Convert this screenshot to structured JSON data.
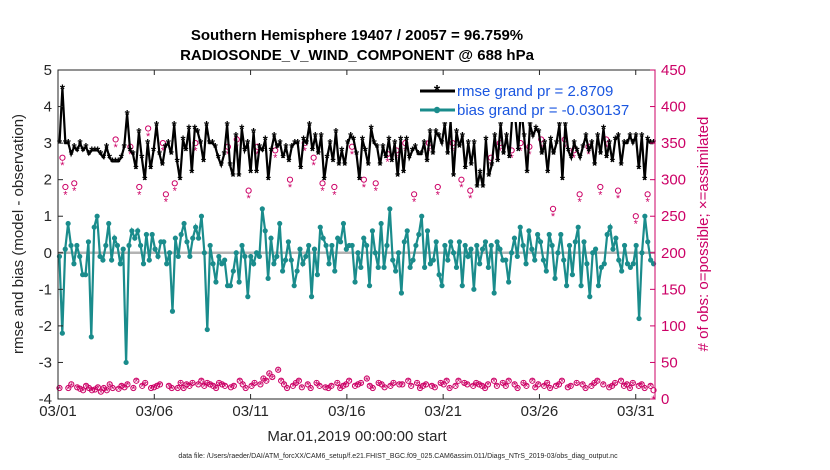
{
  "chart_data": {
    "type": "line",
    "title_line1": "Southern Hemisphere 19407 / 20057 = 96.759%",
    "title_line2": "RADIOSONDE_V_WIND_COMPONENT @ 688 hPa",
    "xlabel": "Mar.01,2019 00:00:00 start",
    "ylabel_left": "rmse and bias (model - observation)",
    "ylabel_right": "# of obs: o=possible; ×=assimilated",
    "footnote": "data file: /Users/raeder/DAI/ATM_forcXX/CAM6_setup/f.e21.FHIST_BGC.f09_025.CAM6assim.011/Diags_NTrS_2019-03/obs_diag_output.nc",
    "x_ticks": [
      {
        "value": 1,
        "label": "03/01"
      },
      {
        "value": 6,
        "label": "03/06"
      },
      {
        "value": 11,
        "label": "03/11"
      },
      {
        "value": 16,
        "label": "03/16"
      },
      {
        "value": 21,
        "label": "03/21"
      },
      {
        "value": 26,
        "label": "03/26"
      },
      {
        "value": 31,
        "label": "03/31"
      }
    ],
    "xlim": [
      1,
      32
    ],
    "ylim_left": [
      -4,
      5
    ],
    "y_ticks_left": [
      -4,
      -3,
      -2,
      -1,
      0,
      1,
      2,
      3,
      4,
      5
    ],
    "ylim_right": [
      0,
      450
    ],
    "y_ticks_right": [
      0,
      50,
      100,
      150,
      200,
      250,
      300,
      350,
      400,
      450
    ],
    "legend": {
      "placement": "top-right",
      "rmse_label": "rmse grand pr = 2.8709",
      "bias_label": "bias grand pr = -0.030137"
    },
    "colors": {
      "rmse": "#000000",
      "bias": "#1a8c8c",
      "counts": "#cc0066",
      "zero_line": "#b3b3b3",
      "legend_text": "#1a56e0"
    },
    "series": {
      "rmse": [
        3.0,
        4.5,
        3.0,
        3.0,
        2.7,
        2.9,
        2.8,
        3.0,
        2.8,
        2.9,
        2.7,
        2.8,
        2.8,
        2.8,
        2.7,
        2.6,
        2.9,
        2.6,
        2.5,
        2.5,
        2.5,
        2.6,
        2.9,
        3.8,
        2.8,
        2.7,
        2.3,
        3.3,
        2.6,
        2.0,
        3.0,
        2.3,
        2.8,
        3.5,
        2.7,
        2.4,
        2.9,
        3.0,
        2.7,
        3.5,
        2.5,
        2.0,
        3.1,
        2.8,
        3.4,
        2.2,
        3.4,
        3.3,
        3.0,
        2.5,
        3.5,
        3.0,
        3.0,
        2.9,
        2.6,
        2.4,
        2.7,
        3.5,
        2.4,
        2.1,
        3.2,
        2.1,
        3.4,
        2.8,
        3.0,
        2.2,
        3.3,
        2.2,
        2.9,
        2.8,
        3.1,
        2.0,
        2.8,
        3.2,
        2.9,
        3.0,
        2.6,
        2.9,
        2.5,
        2.9,
        3.0,
        3.0,
        2.3,
        3.1,
        3.0,
        3.5,
        2.8,
        3.2,
        2.7,
        3.2,
        2.0,
        2.6,
        3.0,
        2.5,
        3.3,
        2.4,
        2.8,
        2.4,
        3.0,
        3.2,
        3.1,
        2.7,
        2.0,
        3.1,
        2.8,
        2.4,
        3.4,
        3.0,
        2.9,
        2.4,
        2.9,
        2.6,
        3.1,
        2.5,
        3.0,
        2.1,
        3.1,
        2.2,
        3.1,
        2.6,
        2.8,
        2.9,
        2.7,
        2.7,
        3.0,
        2.5,
        3.3,
        2.7,
        3.3,
        3.2,
        3.0,
        3.5,
        2.7,
        3.6,
        2.1,
        3.3,
        2.9,
        3.2,
        2.3,
        3.0,
        2.4,
        3.0,
        1.8,
        2.2,
        1.8,
        3.1,
        2.1,
        2.4,
        3.2,
        2.5,
        3.5,
        2.7,
        3.2,
        2.6,
        3.8,
        3.7,
        2.8,
        4.0,
        3.2,
        2.2,
        3.5,
        3.2,
        3.4,
        3.3,
        2.7,
        3.0,
        2.2,
        3.1,
        2.7,
        3.0,
        3.5,
        2.0,
        3.5,
        2.8,
        2.6,
        3.0,
        2.8,
        2.6,
        2.9,
        3.2,
        2.8,
        3.0,
        2.4,
        3.2,
        2.7,
        3.4,
        2.6,
        3.0,
        2.5,
        3.1,
        3.2,
        2.4,
        3.0,
        3.0,
        3.2,
        3.0,
        3.2,
        2.3,
        3.2,
        2.0,
        3.1,
        3.0,
        3.0
      ],
      "bias": [
        -0.1,
        -2.2,
        0.1,
        0.8,
        0.2,
        -0.3,
        0.2,
        -0.1,
        -0.6,
        -0.6,
        0.3,
        -2.3,
        0.7,
        1.0,
        -0.1,
        -0.2,
        0.2,
        0.8,
        -0.2,
        0.4,
        0.2,
        -0.3,
        0.1,
        -3.0,
        0.2,
        0.6,
        0.4,
        0.6,
        0.2,
        -0.3,
        0.5,
        -0.2,
        0.5,
        0.1,
        -0.1,
        0.3,
        0.3,
        -0.3,
        0.0,
        -1.6,
        0.4,
        -0.1,
        0.5,
        0.8,
        0.3,
        -0.1,
        0.4,
        0.7,
        0.4,
        1.0,
        0.0,
        -2.1,
        0.2,
        -0.3,
        -0.8,
        -0.1,
        -0.3,
        -0.2,
        -0.9,
        -0.9,
        -0.5,
        0.0,
        -0.8,
        0.2,
        -0.1,
        -1.2,
        -0.1,
        -0.3,
        0.0,
        -0.1,
        1.2,
        0.6,
        -0.7,
        0.4,
        -0.3,
        -0.1,
        0.8,
        -0.5,
        -0.2,
        0.3,
        -0.2,
        -0.9,
        -0.5,
        0.1,
        -0.3,
        -0.1,
        0.2,
        -1.2,
        0.1,
        -0.6,
        0.7,
        0.4,
        0.2,
        -0.3,
        0.2,
        -0.5,
        0.4,
        0.3,
        0.8,
        0.1,
        0.2,
        0.2,
        -0.8,
        0.0,
        -0.4,
        0.4,
        0.2,
        -0.9,
        0.6,
        0.0,
        -0.4,
        0.8,
        -0.4,
        0.2,
        1.2,
        -0.2,
        -0.5,
        0.0,
        -1.1,
        0.3,
        0.6,
        -0.4,
        -0.2,
        0.2,
        0.5,
        1.0,
        -0.4,
        0.6,
        -0.3,
        -0.2,
        0.3,
        -0.6,
        -0.9,
        0.2,
        -0.2,
        0.3,
        0.0,
        -0.4,
        0.3,
        -0.9,
        0.2,
        -0.1,
        0.1,
        -1.0,
        0.2,
        -0.3,
        0.1,
        0.3,
        -0.4,
        0.2,
        -1.1,
        0.3,
        0.1,
        -0.2,
        -0.2,
        -0.8,
        0.0,
        0.4,
        -0.1,
        0.7,
        0.2,
        -0.3,
        0.6,
        0.1,
        -0.2,
        0.5,
        0.3,
        -0.2,
        -0.5,
        0.5,
        0.2,
        -0.7,
        0.0,
        0.5,
        -0.2,
        -0.9,
        0.2,
        -0.6,
        0.3,
        0.7,
        -0.9,
        0.3,
        -0.3,
        -1.2,
        0.0,
        0.1,
        -0.9,
        -0.4,
        -0.3,
        0.5,
        0.7,
        0.1,
        0.4,
        -0.2,
        -0.5,
        0.2,
        -0.3,
        -0.4,
        -0.3,
        0.2,
        -1.8,
        0.0,
        1.0,
        0.3,
        -0.2,
        -0.3
      ],
      "obs_possible": [
        15,
        330,
        290,
        15,
        20,
        295,
        16,
        14,
        12,
        18,
        15,
        12,
        13,
        16,
        10,
        15,
        12,
        20,
        15,
        355,
        14,
        18,
        16,
        20,
        345,
        15,
        25,
        290,
        18,
        22,
        370,
        15,
        16,
        18,
        20,
        350,
        280,
        18,
        15,
        295,
        15,
        22,
        15,
        20,
        18,
        22,
        350,
        20,
        25,
        18,
        22,
        20,
        18,
        15,
        22,
        20,
        18,
        345,
        16,
        18,
        355,
        25,
        20,
        15,
        285,
        18,
        22,
        345,
        20,
        28,
        25,
        35,
        30,
        340,
        40,
        25,
        20,
        15,
        300,
        18,
        22,
        25,
        16,
        350,
        20,
        15,
        330,
        22,
        18,
        295,
        16,
        15,
        18,
        290,
        22,
        15,
        18,
        20,
        25,
        345,
        18,
        20,
        22,
        300,
        28,
        18,
        15,
        295,
        22,
        20,
        16,
        335,
        18,
        22,
        340,
        20,
        20,
        350,
        25,
        18,
        280,
        22,
        15,
        18,
        20,
        350,
        18,
        16,
        290,
        22,
        20,
        25,
        15,
        350,
        18,
        25,
        300,
        22,
        20,
        285,
        18,
        22,
        20,
        18,
        15,
        20,
        330,
        25,
        18,
        350,
        22,
        18,
        25,
        340,
        20,
        15,
        350,
        22,
        18,
        345,
        25,
        16,
        20,
        355,
        18,
        22,
        15,
        260,
        18,
        20,
        25,
        355,
        16,
        18,
        340,
        22,
        280,
        20,
        15,
        345,
        18,
        22,
        25,
        290,
        20,
        355,
        16,
        18,
        22,
        285,
        25,
        18,
        20,
        15,
        22,
        250,
        18,
        20,
        15,
        280,
        18,
        12
      ],
      "obs_assimilated": [
        14,
        320,
        280,
        14,
        18,
        285,
        15,
        13,
        11,
        17,
        14,
        11,
        12,
        15,
        9,
        14,
        11,
        18,
        14,
        345,
        13,
        17,
        15,
        19,
        335,
        14,
        24,
        280,
        17,
        20,
        360,
        14,
        15,
        17,
        19,
        340,
        270,
        17,
        14,
        285,
        14,
        20,
        14,
        19,
        17,
        20,
        340,
        19,
        24,
        17,
        20,
        19,
        17,
        14,
        20,
        19,
        17,
        335,
        15,
        17,
        345,
        24,
        19,
        14,
        275,
        17,
        20,
        335,
        19,
        26,
        24,
        33,
        28,
        330,
        38,
        24,
        19,
        14,
        290,
        17,
        20,
        24,
        15,
        340,
        19,
        14,
        320,
        20,
        17,
        285,
        15,
        14,
        17,
        280,
        20,
        14,
        17,
        19,
        24,
        335,
        17,
        19,
        20,
        290,
        26,
        17,
        14,
        285,
        20,
        19,
        15,
        325,
        17,
        20,
        330,
        19,
        19,
        340,
        24,
        17,
        270,
        20,
        14,
        17,
        19,
        340,
        17,
        15,
        280,
        20,
        19,
        24,
        14,
        340,
        17,
        24,
        290,
        20,
        19,
        275,
        17,
        20,
        19,
        17,
        14,
        19,
        320,
        24,
        17,
        340,
        20,
        17,
        24,
        330,
        19,
        14,
        340,
        20,
        17,
        335,
        24,
        15,
        19,
        345,
        17,
        20,
        14,
        250,
        17,
        19,
        24,
        345,
        15,
        17,
        330,
        20,
        270,
        19,
        14,
        335,
        17,
        20,
        24,
        280,
        19,
        345,
        15,
        17,
        20,
        275,
        24,
        17,
        19,
        14,
        20,
        240,
        17,
        19,
        14,
        270,
        17,
        0
      ]
    }
  }
}
